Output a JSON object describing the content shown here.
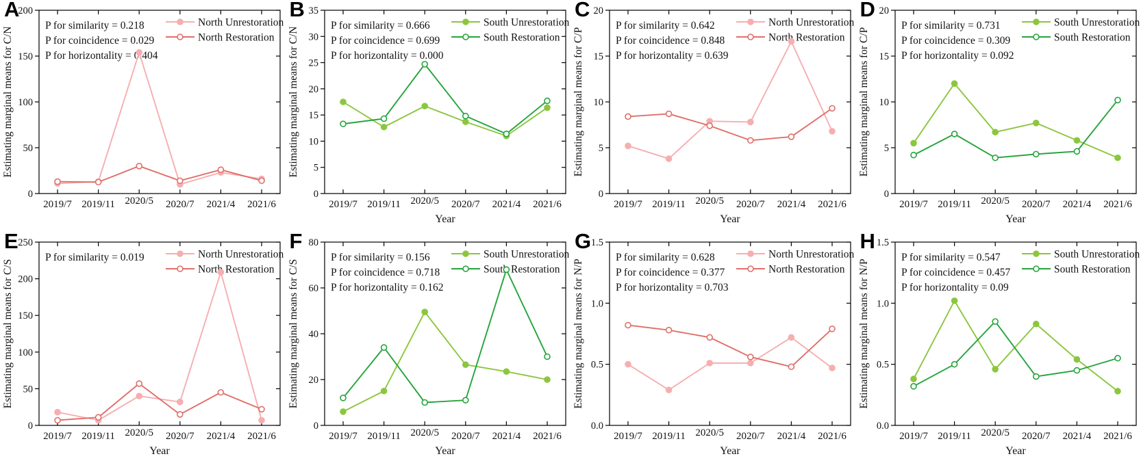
{
  "figure": {
    "x_categories": [
      "2019/7",
      "2019/11",
      "2020/5",
      "2020/7",
      "2021/4",
      "2021/6"
    ],
    "colors": {
      "north_unrestoration": "#F6AEB0",
      "north_restoration": "#E06E68",
      "south_unrestoration": "#8CC63E",
      "south_restoration": "#25A43C",
      "axis": "#000000",
      "text": "#111111"
    }
  },
  "chart_data": [
    {
      "type": "line",
      "panel": "A",
      "ylabel": "Estimating marginal means for C/N",
      "xlabel": "",
      "x": [
        "2019/7",
        "2019/11",
        "2020/5",
        "2020/7",
        "2021/4",
        "2021/6"
      ],
      "ylim": [
        0,
        200
      ],
      "yticks": [
        "0",
        "50",
        "100",
        "150",
        "200"
      ],
      "legend_position": "top-right",
      "annotations": [
        "P for similarity = 0.218",
        "P for coincidence = 0.029",
        "P for horizontality = 0.404"
      ],
      "series": [
        {
          "name": "North Unrestoration",
          "marker": "filled-circle",
          "color": "#F6AEB0",
          "values": [
            11,
            13,
            154,
            10,
            23,
            16
          ]
        },
        {
          "name": "North Restoration",
          "marker": "open-circle",
          "color": "#E06E68",
          "values": [
            13,
            12.5,
            30,
            14,
            26,
            14
          ]
        }
      ]
    },
    {
      "type": "line",
      "panel": "B",
      "ylabel": "Estimating marginal means for C/N",
      "xlabel": "Year",
      "x": [
        "2019/7",
        "2019/11",
        "2020/5",
        "2020/7",
        "2021/4",
        "2021/6"
      ],
      "ylim": [
        0,
        35
      ],
      "yticks": [
        "0",
        "5",
        "10",
        "15",
        "20",
        "25",
        "30",
        "35"
      ],
      "legend_position": "top-right",
      "annotations": [
        "P for similarity = 0.666",
        "P for coincidence = 0.699",
        "P for horizontality = 0.000"
      ],
      "series": [
        {
          "name": "South Unrestoration",
          "marker": "filled-circle",
          "color": "#8CC63E",
          "values": [
            17.5,
            12.7,
            16.7,
            13.7,
            11.0,
            16.4
          ]
        },
        {
          "name": "South Restoration",
          "marker": "open-circle",
          "color": "#25A43C",
          "values": [
            13.3,
            14.3,
            24.7,
            14.8,
            11.4,
            17.7
          ]
        }
      ]
    },
    {
      "type": "line",
      "panel": "C",
      "ylabel": "Estimating marginal means for C/P",
      "xlabel": "Year",
      "x": [
        "2019/7",
        "2019/11",
        "2020/5",
        "2020/7",
        "2021/4",
        "2021/6"
      ],
      "ylim": [
        0,
        20
      ],
      "yticks": [
        "0",
        "5",
        "10",
        "15",
        "20"
      ],
      "legend_position": "top-right",
      "annotations": [
        "P for similarity = 0.642",
        "P for coincidence = 0.848",
        "P for horizontality = 0.639"
      ],
      "series": [
        {
          "name": "North Unrestoration",
          "marker": "filled-circle",
          "color": "#F6AEB0",
          "values": [
            5.2,
            3.8,
            7.9,
            7.8,
            16.6,
            6.8
          ]
        },
        {
          "name": "North Restoration",
          "marker": "open-circle",
          "color": "#E06E68",
          "values": [
            8.4,
            8.7,
            7.4,
            5.8,
            6.2,
            9.3
          ]
        }
      ]
    },
    {
      "type": "line",
      "panel": "D",
      "ylabel": "Estimating marginal means for C/P",
      "xlabel": "Year",
      "x": [
        "2019/7",
        "2019/11",
        "2020/5",
        "2020/7",
        "2021/4",
        "2021/6"
      ],
      "ylim": [
        0,
        20
      ],
      "yticks": [
        "0",
        "5",
        "10",
        "15",
        "20"
      ],
      "legend_position": "top-right",
      "annotations": [
        "P for similarity = 0.731",
        "P for coincidence = 0.309",
        "P for horizontality = 0.092"
      ],
      "series": [
        {
          "name": "South Unrestoration",
          "marker": "filled-circle",
          "color": "#8CC63E",
          "values": [
            5.5,
            12.0,
            6.7,
            7.7,
            5.8,
            3.9
          ]
        },
        {
          "name": "South Restoration",
          "marker": "open-circle",
          "color": "#25A43C",
          "values": [
            4.2,
            6.5,
            3.9,
            4.3,
            4.6,
            10.2
          ]
        }
      ]
    },
    {
      "type": "line",
      "panel": "E",
      "ylabel": "Estimating marginal means for C/S",
      "xlabel": "Year",
      "x": [
        "2019/7",
        "2019/11",
        "2020/5",
        "2020/7",
        "2021/4",
        "2021/6"
      ],
      "ylim": [
        0,
        250
      ],
      "yticks": [
        "0",
        "50",
        "100",
        "150",
        "200",
        "250"
      ],
      "legend_position": "top-right",
      "annotations": [
        "P for similarity = 0.019"
      ],
      "series": [
        {
          "name": "North Unrestoration",
          "marker": "filled-circle",
          "color": "#F6AEB0",
          "values": [
            18,
            7,
            40,
            32,
            209,
            7
          ]
        },
        {
          "name": "North Restoration",
          "marker": "open-circle",
          "color": "#E06E68",
          "values": [
            7,
            11,
            57,
            15,
            45,
            22
          ]
        }
      ]
    },
    {
      "type": "line",
      "panel": "F",
      "ylabel": "Estimating marginal means for C/S",
      "xlabel": "Year",
      "x": [
        "2019/7",
        "2019/11",
        "2020/5",
        "2020/7",
        "2021/4",
        "2021/6"
      ],
      "ylim": [
        0,
        80
      ],
      "yticks": [
        "0",
        "20",
        "40",
        "60",
        "80"
      ],
      "legend_position": "top-right",
      "annotations": [
        "P for similarity = 0.156",
        "P for coincidence = 0.718",
        "P for horizontality = 0.162"
      ],
      "series": [
        {
          "name": "South Unrestoration",
          "marker": "filled-circle",
          "color": "#8CC63E",
          "values": [
            6,
            15,
            49.5,
            26.5,
            23.5,
            20
          ]
        },
        {
          "name": "South Restoration",
          "marker": "open-circle",
          "color": "#25A43C",
          "values": [
            12,
            34,
            10,
            11,
            68,
            30
          ]
        }
      ]
    },
    {
      "type": "line",
      "panel": "G",
      "ylabel": "Estimating marginal means for N/P",
      "xlabel": "Year",
      "x": [
        "2019/7",
        "2019/11",
        "2020/5",
        "2020/7",
        "2021/4",
        "2021/6"
      ],
      "ylim": [
        0,
        1.5
      ],
      "yticks": [
        "0.0",
        "0.5",
        "1.0",
        "1.5"
      ],
      "legend_position": "top-right",
      "annotations": [
        "P for similarity = 0.628",
        "P for coincidence = 0.377",
        "P for horizontality = 0.703"
      ],
      "series": [
        {
          "name": "North Unrestoration",
          "marker": "filled-circle",
          "color": "#F6AEB0",
          "values": [
            0.5,
            0.29,
            0.51,
            0.51,
            0.72,
            0.47
          ]
        },
        {
          "name": "North Restoration",
          "marker": "open-circle",
          "color": "#E06E68",
          "values": [
            0.82,
            0.78,
            0.72,
            0.56,
            0.48,
            0.79
          ]
        }
      ]
    },
    {
      "type": "line",
      "panel": "H",
      "ylabel": "Estimating marginal means for N/P",
      "xlabel": "Year",
      "x": [
        "2019/7",
        "2019/11",
        "2020/5",
        "2020/7",
        "2021/4",
        "2021/6"
      ],
      "ylim": [
        0,
        1.5
      ],
      "yticks": [
        "0.0",
        "0.5",
        "1.0",
        "1.5"
      ],
      "legend_position": "top-right",
      "annotations": [
        "P for similarity = 0.547",
        "P for coincidence = 0.457",
        "P for horizontality = 0.09"
      ],
      "series": [
        {
          "name": "South Unrestoration",
          "marker": "filled-circle",
          "color": "#8CC63E",
          "values": [
            0.38,
            1.02,
            0.46,
            0.83,
            0.54,
            0.28
          ]
        },
        {
          "name": "South Restoration",
          "marker": "open-circle",
          "color": "#25A43C",
          "values": [
            0.32,
            0.5,
            0.85,
            0.4,
            0.45,
            0.55
          ]
        }
      ]
    }
  ]
}
